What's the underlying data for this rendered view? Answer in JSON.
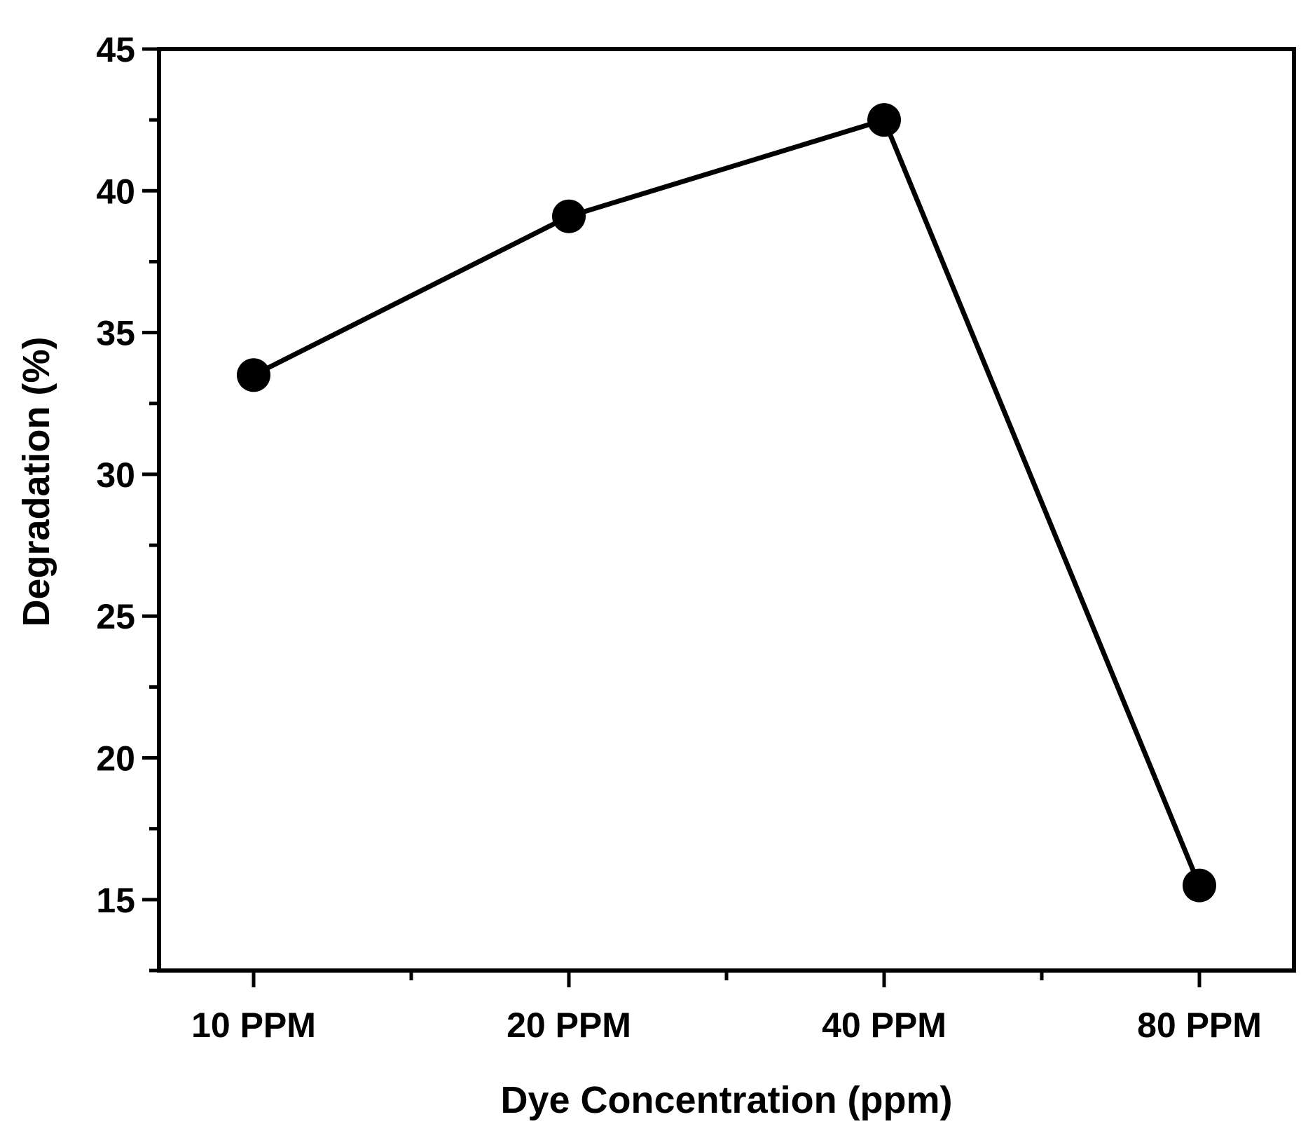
{
  "chart_data": {
    "type": "line",
    "title": "",
    "xlabel": "Dye Concentration (ppm)",
    "ylabel": "Degradation (%)",
    "categories": [
      "10 PPM",
      "20 PPM",
      "40 PPM",
      "80 PPM"
    ],
    "series": [
      {
        "name": "Degradation",
        "values": [
          33.5,
          39.1,
          42.5,
          15.5
        ],
        "marker": "filled-circle",
        "color": "#000000"
      }
    ],
    "ylim": [
      12.5,
      45
    ],
    "yticks": [
      15,
      20,
      25,
      30,
      35,
      40,
      45
    ],
    "ytick_labels": [
      "15",
      "20",
      "25",
      "30",
      "35",
      "40",
      "45"
    ],
    "y_minor_tick_step": 2.5,
    "grid": false,
    "legend": "none"
  }
}
